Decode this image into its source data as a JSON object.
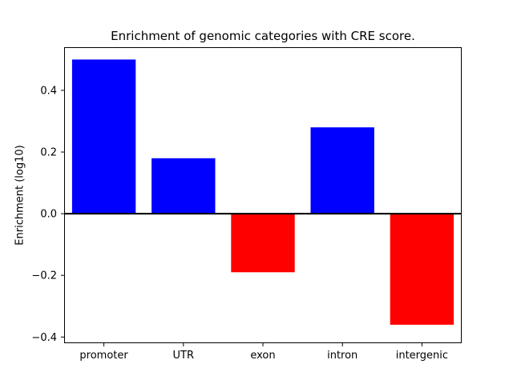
{
  "chart_data": {
    "type": "bar",
    "title": "Enrichment of genomic categories with CRE score.",
    "xlabel": "",
    "ylabel": "Enrichment (log10)",
    "categories": [
      "promoter",
      "UTR",
      "exon",
      "intron",
      "intergenic"
    ],
    "values": [
      0.5,
      0.18,
      -0.19,
      0.28,
      -0.36
    ],
    "ylim": [
      -0.42,
      0.54
    ],
    "yticks": [
      -0.4,
      -0.2,
      0.0,
      0.2,
      0.4
    ],
    "bar_width_fraction": 0.8,
    "colors": {
      "positive": "#0000ff",
      "negative": "#ff0000"
    },
    "zero_line": {
      "color": "#000000",
      "width": 2
    },
    "grid": false,
    "legend": null
  }
}
